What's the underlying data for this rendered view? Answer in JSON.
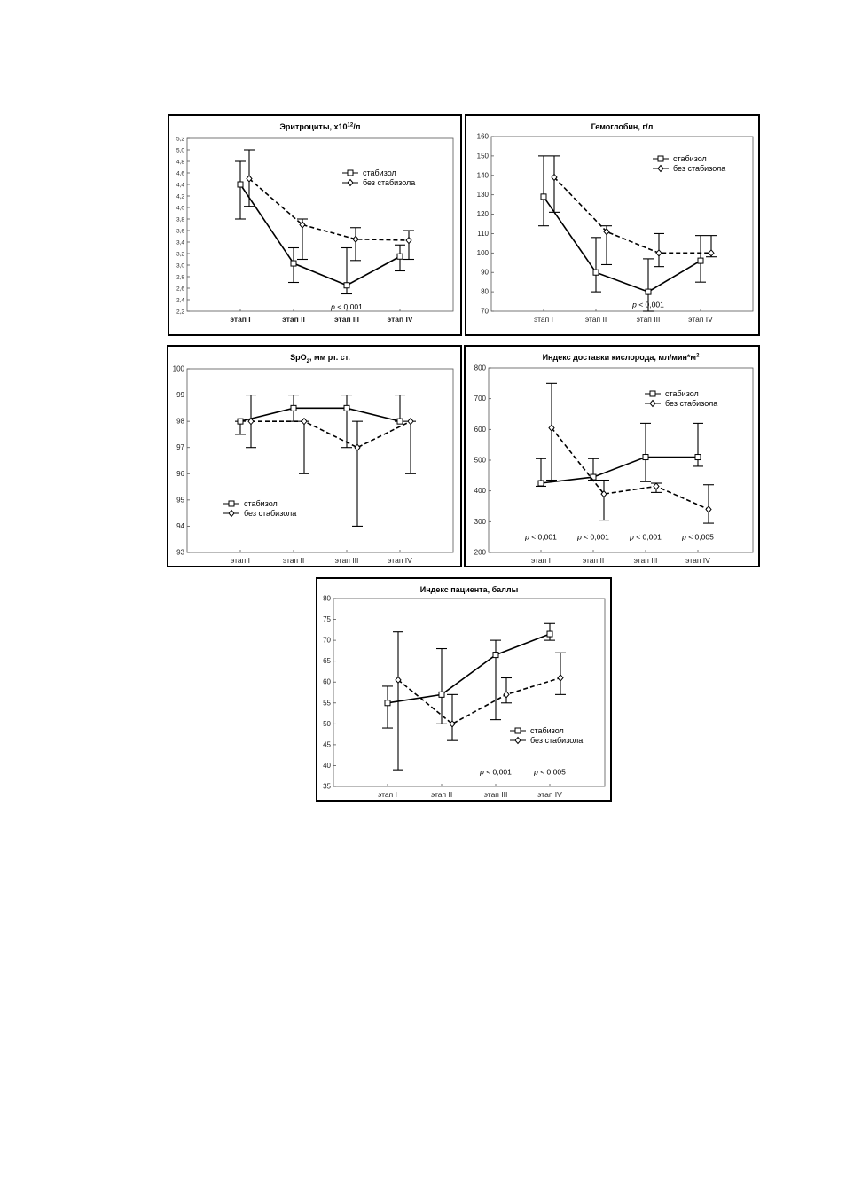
{
  "chart_data": [
    {
      "type": "line",
      "title": "Эритроциты, х10",
      "title_sup": "12",
      "title_suffix": "/л",
      "categories": [
        "этап I",
        "этап II",
        "этап III",
        "этап IV"
      ],
      "ylim": [
        2.2,
        5.2
      ],
      "yticks": [
        "2,2",
        "2,4",
        "2,6",
        "2,8",
        "3,0",
        "3,2",
        "3,4",
        "3,6",
        "3,8",
        "4,0",
        "4,2",
        "4,4",
        "4,6",
        "4,8",
        "5,0",
        "5,2"
      ],
      "bold_xlabels": true,
      "legend": "top-right",
      "series": [
        {
          "name": "стабизол",
          "style": "solid",
          "marker": "square",
          "values": [
            4.4,
            3.03,
            2.65,
            3.15
          ],
          "lower": [
            3.8,
            2.7,
            2.5,
            2.9
          ],
          "upper": [
            4.8,
            3.3,
            3.3,
            3.35
          ]
        },
        {
          "name": "без стабизола",
          "style": "dashed",
          "marker": "diamond",
          "values": [
            4.5,
            3.7,
            3.45,
            3.43
          ],
          "lower": [
            4.02,
            3.1,
            3.08,
            3.1
          ],
          "upper": [
            5.0,
            3.8,
            3.65,
            3.6
          ]
        }
      ],
      "annotations": [
        {
          "p": "p",
          "text": " < 0,001",
          "category": 2,
          "y": 2.28
        }
      ]
    },
    {
      "type": "line",
      "title": "Гемоглобин, г/л",
      "categories": [
        "этап I",
        "этап II",
        "этап III",
        "этап IV"
      ],
      "ylim": [
        70,
        160
      ],
      "yticks": [
        "70",
        "80",
        "90",
        "100",
        "110",
        "120",
        "130",
        "140",
        "150",
        "160"
      ],
      "bold_xlabels": false,
      "legend": "top-right",
      "series": [
        {
          "name": "стабизол",
          "style": "solid",
          "marker": "square",
          "values": [
            129,
            90,
            80,
            96
          ],
          "lower": [
            114,
            80,
            70,
            85
          ],
          "upper": [
            150,
            108,
            97,
            109
          ]
        },
        {
          "name": "без стабизола",
          "style": "dashed",
          "marker": "diamond",
          "values": [
            139,
            111,
            100,
            100
          ],
          "lower": [
            121,
            94,
            93,
            98
          ],
          "upper": [
            150,
            114,
            110,
            109
          ]
        }
      ],
      "annotations": [
        {
          "p": "p",
          "text": " < 0,001",
          "category": 2,
          "y": 73.5
        }
      ]
    },
    {
      "type": "line",
      "title": "SpO",
      "title_sub": "2",
      "title_suffix": ", мм рт. ст.",
      "categories": [
        "этап I",
        "этап II",
        "этап III",
        "этап IV"
      ],
      "ylim": [
        93,
        100
      ],
      "yticks": [
        "93",
        "94",
        "95",
        "96",
        "97",
        "98",
        "99",
        "100"
      ],
      "bold_xlabels": false,
      "legend": "bottom-left",
      "series": [
        {
          "name": "стабизол",
          "style": "solid",
          "marker": "square",
          "values": [
            98,
            98.5,
            98.5,
            98
          ],
          "lower": [
            97.5,
            98,
            97,
            98
          ],
          "upper": [
            98,
            99,
            99,
            99
          ]
        },
        {
          "name": "без стабизола",
          "style": "dashed",
          "marker": "diamond",
          "values": [
            98,
            98,
            97,
            98
          ],
          "lower": [
            97,
            96,
            94,
            96
          ],
          "upper": [
            99,
            98,
            98,
            98
          ]
        }
      ],
      "annotations": []
    },
    {
      "type": "line",
      "title": "Индекс доставки кислорода, мл/мин*м",
      "title_sup": "2",
      "categories": [
        "этап I",
        "этап II",
        "этап III",
        "этап IV"
      ],
      "ylim": [
        200,
        800
      ],
      "yticks": [
        "200",
        "300",
        "400",
        "500",
        "600",
        "700",
        "800"
      ],
      "bold_xlabels": false,
      "legend": "top-right",
      "series": [
        {
          "name": "стабизол",
          "style": "solid",
          "marker": "square",
          "values": [
            425,
            445,
            510,
            510
          ],
          "lower": [
            415,
            435,
            430,
            480
          ],
          "upper": [
            505,
            505,
            620,
            620
          ]
        },
        {
          "name": "без стабизола",
          "style": "dashed",
          "marker": "diamond",
          "values": [
            605,
            390,
            415,
            340
          ],
          "lower": [
            435,
            305,
            395,
            295
          ],
          "upper": [
            750,
            435,
            425,
            420
          ]
        }
      ],
      "annotations": [
        {
          "p": "p",
          "text": " < 0,001",
          "category": 0,
          "y": 250
        },
        {
          "p": "p",
          "text": " < 0,001",
          "category": 1,
          "y": 250
        },
        {
          "p": "p",
          "text": " < 0,001",
          "category": 2,
          "y": 250
        },
        {
          "p": "p",
          "text": " < 0,005",
          "category": 3,
          "y": 250
        }
      ]
    },
    {
      "type": "line",
      "title": "Индекс пациента, баллы",
      "categories": [
        "этап I",
        "этап II",
        "этап III",
        "этап IV"
      ],
      "ylim": [
        35,
        80
      ],
      "yticks": [
        "35",
        "40",
        "45",
        "50",
        "55",
        "60",
        "65",
        "70",
        "75",
        "80"
      ],
      "bold_xlabels": false,
      "legend": "bottom-right",
      "series": [
        {
          "name": "стабизол",
          "style": "solid",
          "marker": "square",
          "values": [
            55,
            57,
            66.5,
            71.5
          ],
          "lower": [
            49,
            50,
            51,
            70
          ],
          "upper": [
            59,
            68,
            70,
            74
          ]
        },
        {
          "name": "без стабизола",
          "style": "dashed",
          "marker": "diamond",
          "values": [
            60.5,
            50,
            57,
            61
          ],
          "lower": [
            39,
            46,
            55,
            57
          ],
          "upper": [
            72,
            57,
            61,
            67
          ]
        }
      ],
      "annotations": [
        {
          "p": "p",
          "text": " < 0,001",
          "category": 2,
          "y": 38.5
        },
        {
          "p": "p",
          "text": " < 0,005",
          "category": 3,
          "y": 38.5
        }
      ]
    }
  ]
}
